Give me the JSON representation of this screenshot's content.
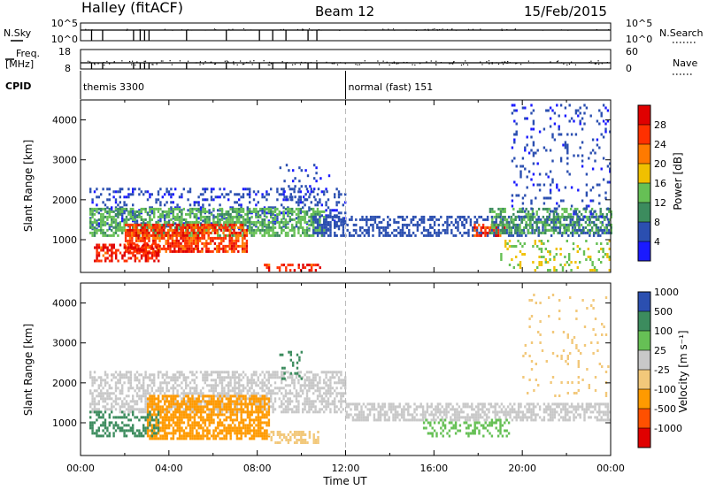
{
  "header": {
    "station": "Halley (fitACF)",
    "beam": "Beam 12",
    "date": "15/Feb/2015"
  },
  "meta_panels": {
    "nsky": {
      "left_label": "N.Sky",
      "left_ticks": [
        "10^5",
        "10^0"
      ],
      "right_label": "N.Search",
      "right_ticks": [
        "10^5",
        "10^0"
      ]
    },
    "freq": {
      "left_label_1": "Freq.",
      "left_label_2": "[MHz]",
      "left_ticks": [
        "18",
        "8"
      ],
      "right_label": "Nave",
      "right_ticks": [
        "60",
        "0"
      ]
    },
    "cpid": {
      "label": "CPID",
      "segments": [
        {
          "start_hour": 0.0,
          "text": "themis 3300"
        },
        {
          "start_hour": 12.0,
          "text": "normal (fast) 151"
        }
      ]
    }
  },
  "colors": {
    "power": [
      "#1a1aff",
      "#2b4fb0",
      "#3c8c5e",
      "#66c055",
      "#f0c000",
      "#ff7a00",
      "#ff3000",
      "#e00000"
    ],
    "velocity": [
      "#e00000",
      "#ff5000",
      "#ff9a00",
      "#f2c87a",
      "#c8c8c8",
      "#66c055",
      "#3c8c5e",
      "#2b4fb0"
    ]
  },
  "chart_data": [
    {
      "type": "heatmap",
      "name": "Power",
      "xlabel": "",
      "ylabel": "Slant Range [km]",
      "xlim": [
        0,
        24
      ],
      "ylim": [
        180,
        4500
      ],
      "yticks": [
        1000,
        2000,
        3000,
        4000
      ],
      "ytick_labels": [
        "1000",
        "2000",
        "3000",
        "4000"
      ],
      "colorbar": {
        "label": "Power [dB]",
        "tick_labels": [
          "4",
          "8",
          "12",
          "16",
          "20",
          "24",
          "28"
        ],
        "range": [
          0,
          32
        ],
        "levels": [
          0,
          4,
          8,
          12,
          16,
          20,
          24,
          28,
          32
        ]
      },
      "features": [
        {
          "x": [
            0.4,
            12.0
          ],
          "y": [
            1300,
            2300
          ],
          "value": 5,
          "density": 0.28
        },
        {
          "x": [
            0.4,
            11.0
          ],
          "y": [
            1100,
            1800
          ],
          "value": 13,
          "density": 0.6
        },
        {
          "x": [
            2.0,
            7.5
          ],
          "y": [
            700,
            1400
          ],
          "value": 26,
          "density": 0.75
        },
        {
          "x": [
            0.6,
            3.5
          ],
          "y": [
            500,
            900
          ],
          "value": 28,
          "density": 0.55
        },
        {
          "x": [
            8.2,
            10.8
          ],
          "y": [
            250,
            400
          ],
          "value": 27,
          "density": 0.5
        },
        {
          "x": [
            10.5,
            24.0
          ],
          "y": [
            1100,
            1600
          ],
          "value": 6,
          "density": 0.45
        },
        {
          "x": [
            17.8,
            19.2
          ],
          "y": [
            1100,
            1400
          ],
          "value": 26,
          "density": 0.6
        },
        {
          "x": [
            18.5,
            24.0
          ],
          "y": [
            1200,
            1800
          ],
          "value": 12,
          "density": 0.5
        },
        {
          "x": [
            19.5,
            24.0
          ],
          "y": [
            1500,
            4400
          ],
          "value": 5,
          "density": 0.12
        },
        {
          "x": [
            9.0,
            11.5
          ],
          "y": [
            2000,
            2900
          ],
          "value": 5,
          "density": 0.12
        },
        {
          "x": [
            19.0,
            24.0
          ],
          "y": [
            250,
            1000
          ],
          "value": 16,
          "density": 0.2
        }
      ]
    },
    {
      "type": "heatmap",
      "name": "Velocity",
      "xlabel": "Time UT",
      "ylabel": "Slant Range [km]",
      "xlim": [
        0,
        24
      ],
      "ylim": [
        180,
        4500
      ],
      "xticks": [
        0,
        4,
        8,
        12,
        16,
        20,
        24
      ],
      "xtick_labels": [
        "00:00",
        "04:00",
        "08:00",
        "12:00",
        "16:00",
        "20:00",
        "00:00"
      ],
      "yticks": [
        1000,
        2000,
        3000,
        4000
      ],
      "ytick_labels": [
        "1000",
        "2000",
        "3000",
        "4000"
      ],
      "colorbar": {
        "label": "Velocity [m s⁻¹]",
        "tick_labels": [
          "-1000",
          "-500",
          "-100",
          "-25",
          "25",
          "100",
          "500",
          "1000"
        ],
        "levels": [
          -1500,
          -1000,
          -500,
          -100,
          -25,
          25,
          100,
          500,
          1000,
          1500
        ]
      },
      "features": [
        {
          "x": [
            0.4,
            12.0
          ],
          "y": [
            1300,
            2300
          ],
          "value": 0,
          "density": 0.55
        },
        {
          "x": [
            12.0,
            24.0
          ],
          "y": [
            1100,
            1500
          ],
          "value": 0,
          "density": 0.6
        },
        {
          "x": [
            3.0,
            8.5
          ],
          "y": [
            600,
            1700
          ],
          "value": -300,
          "density": 0.7
        },
        {
          "x": [
            8.5,
            10.8
          ],
          "y": [
            500,
            800
          ],
          "value": -60,
          "density": 0.5
        },
        {
          "x": [
            0.4,
            3.5
          ],
          "y": [
            700,
            1300
          ],
          "value": 300,
          "density": 0.4
        },
        {
          "x": [
            15.5,
            19.5
          ],
          "y": [
            700,
            1100
          ],
          "value": 80,
          "density": 0.35
        },
        {
          "x": [
            20.0,
            24.0
          ],
          "y": [
            1700,
            4300
          ],
          "value": -60,
          "density": 0.06
        },
        {
          "x": [
            9.0,
            10.0
          ],
          "y": [
            2100,
            2800
          ],
          "value": 300,
          "density": 0.2
        }
      ]
    }
  ]
}
